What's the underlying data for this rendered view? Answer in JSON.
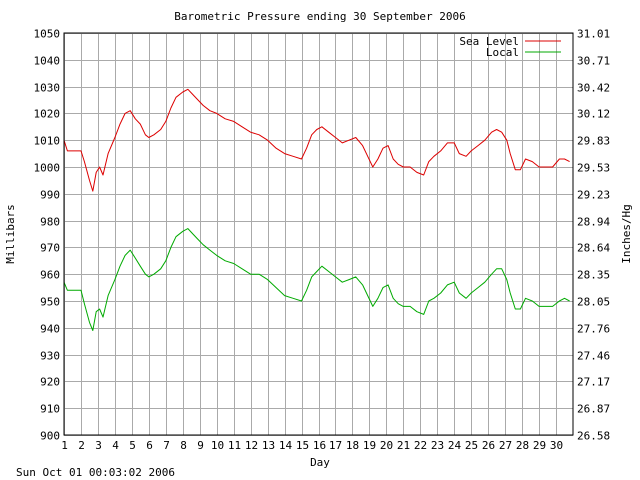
{
  "footer_timestamp": "Sun Oct 01 00:03:02 2006",
  "chart_data": {
    "type": "line",
    "title": "Barometric Pressure ending 30 September 2006",
    "xlabel": "Day",
    "ylabel": "Millibars",
    "y2label": "Inches/Hg",
    "xlim": [
      1,
      31
    ],
    "ylim": [
      900,
      1050
    ],
    "x_ticks": [
      1,
      2,
      3,
      4,
      5,
      6,
      7,
      8,
      9,
      10,
      11,
      12,
      13,
      14,
      15,
      16,
      17,
      18,
      19,
      20,
      21,
      22,
      23,
      24,
      25,
      26,
      27,
      28,
      29,
      30
    ],
    "y_ticks": [
      900,
      910,
      920,
      930,
      940,
      950,
      960,
      970,
      980,
      990,
      1000,
      1010,
      1020,
      1030,
      1040,
      1050
    ],
    "y2_ticks": [
      "26.58",
      "26.87",
      "27.17",
      "27.46",
      "27.76",
      "28.05",
      "28.35",
      "28.64",
      "28.94",
      "29.23",
      "29.53",
      "29.83",
      "30.12",
      "30.42",
      "30.71",
      "31.01"
    ],
    "grid": true,
    "legend_position": "top-right",
    "series": [
      {
        "name": "Sea Level",
        "color": "#dd0000",
        "x": [
          1.0,
          1.2,
          1.5,
          2.0,
          2.2,
          2.5,
          2.7,
          2.9,
          3.1,
          3.3,
          3.6,
          4.0,
          4.3,
          4.6,
          4.9,
          5.2,
          5.5,
          5.8,
          6.0,
          6.3,
          6.7,
          7.0,
          7.3,
          7.6,
          8.0,
          8.3,
          8.6,
          8.9,
          9.2,
          9.6,
          10.0,
          10.5,
          11.0,
          11.5,
          12.0,
          12.5,
          13.0,
          13.5,
          14.0,
          14.5,
          15.0,
          15.3,
          15.6,
          15.9,
          16.2,
          16.6,
          17.0,
          17.4,
          17.8,
          18.2,
          18.6,
          18.9,
          19.2,
          19.5,
          19.8,
          20.1,
          20.4,
          20.7,
          21.0,
          21.4,
          21.8,
          22.2,
          22.5,
          22.8,
          23.2,
          23.6,
          24.0,
          24.3,
          24.7,
          25.0,
          25.4,
          25.8,
          26.2,
          26.5,
          26.8,
          27.1,
          27.3,
          27.6,
          27.9,
          28.2,
          28.6,
          29.0,
          29.4,
          29.8,
          30.2,
          30.5,
          30.8
        ],
        "values": [
          1010,
          1006,
          1006,
          1006,
          1002,
          995,
          991,
          998,
          1000,
          997,
          1005,
          1011,
          1016,
          1020,
          1021,
          1018,
          1016,
          1012,
          1011,
          1012,
          1014,
          1017,
          1022,
          1026,
          1028,
          1029,
          1027,
          1025,
          1023,
          1021,
          1020,
          1018,
          1017,
          1015,
          1013,
          1012,
          1010,
          1007,
          1005,
          1004,
          1003,
          1007,
          1012,
          1014,
          1015,
          1013,
          1011,
          1009,
          1010,
          1011,
          1008,
          1004,
          1000,
          1003,
          1007,
          1008,
          1003,
          1001,
          1000,
          1000,
          998,
          997,
          1002,
          1004,
          1006,
          1009,
          1009,
          1005,
          1004,
          1006,
          1008,
          1010,
          1013,
          1014,
          1013,
          1010,
          1005,
          999,
          999,
          1003,
          1002,
          1000,
          1000,
          1000,
          1003,
          1003,
          1002
        ]
      },
      {
        "name": "Local",
        "color": "#00aa00",
        "x": [
          1.0,
          1.2,
          1.5,
          2.0,
          2.2,
          2.5,
          2.7,
          2.9,
          3.1,
          3.3,
          3.6,
          4.0,
          4.3,
          4.6,
          4.9,
          5.2,
          5.5,
          5.8,
          6.0,
          6.3,
          6.7,
          7.0,
          7.3,
          7.6,
          8.0,
          8.3,
          8.6,
          8.9,
          9.2,
          9.6,
          10.0,
          10.5,
          11.0,
          11.5,
          12.0,
          12.5,
          13.0,
          13.5,
          14.0,
          14.5,
          15.0,
          15.3,
          15.6,
          15.9,
          16.2,
          16.6,
          17.0,
          17.4,
          17.8,
          18.2,
          18.6,
          18.9,
          19.2,
          19.5,
          19.8,
          20.1,
          20.4,
          20.7,
          21.0,
          21.4,
          21.8,
          22.2,
          22.5,
          22.8,
          23.2,
          23.6,
          24.0,
          24.3,
          24.7,
          25.0,
          25.4,
          25.8,
          26.2,
          26.5,
          26.8,
          27.1,
          27.3,
          27.6,
          27.9,
          28.2,
          28.6,
          29.0,
          29.4,
          29.8,
          30.2,
          30.5,
          30.8
        ],
        "values": [
          957,
          954,
          954,
          954,
          949,
          942,
          939,
          946,
          947,
          944,
          952,
          958,
          963,
          967,
          969,
          966,
          963,
          960,
          959,
          960,
          962,
          965,
          970,
          974,
          976,
          977,
          975,
          973,
          971,
          969,
          967,
          965,
          964,
          962,
          960,
          960,
          958,
          955,
          952,
          951,
          950,
          954,
          959,
          961,
          963,
          961,
          959,
          957,
          958,
          959,
          956,
          952,
          948,
          951,
          955,
          956,
          951,
          949,
          948,
          948,
          946,
          945,
          950,
          951,
          953,
          956,
          957,
          953,
          951,
          953,
          955,
          957,
          960,
          962,
          962,
          958,
          953,
          947,
          947,
          951,
          950,
          948,
          948,
          948,
          950,
          951,
          950
        ]
      }
    ]
  }
}
